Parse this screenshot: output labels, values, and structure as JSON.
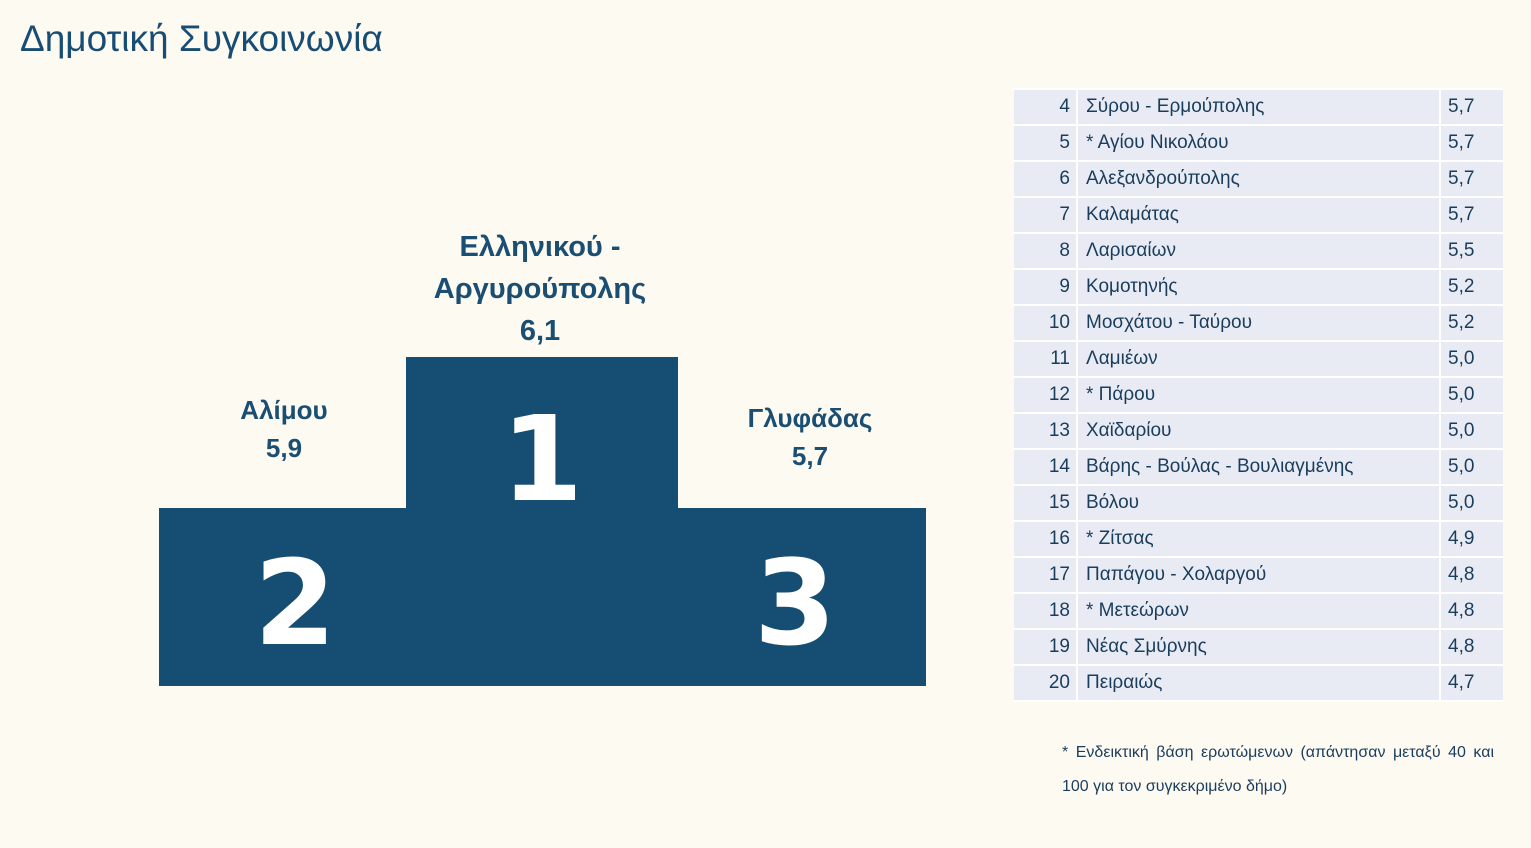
{
  "title": "Δημοτική Συγκοινωνία",
  "colors": {
    "podium": "#154e72",
    "label_text": "#1a4e72",
    "table_row": "#e8ebf3",
    "background": "#fdfaf2"
  },
  "podium": {
    "first": {
      "rank": "1",
      "name_line1": "Ελληνικού -",
      "name_line2": "Αργυρούπολης",
      "score": "6,1"
    },
    "second": {
      "rank": "2",
      "name": "Αλίμου",
      "score": "5,9"
    },
    "third": {
      "rank": "3",
      "name": "Γλυφάδας",
      "score": "5,7"
    }
  },
  "chart_data": {
    "type": "table",
    "title": "Δημοτική Συγκοινωνία",
    "top3": [
      {
        "rank": 1,
        "municipality": "Ελληνικού - Αργυρούπολης",
        "score": 6.1
      },
      {
        "rank": 2,
        "municipality": "Αλίμου",
        "score": 5.9
      },
      {
        "rank": 3,
        "municipality": "Γλυφάδας",
        "score": 5.7
      }
    ],
    "rows": [
      {
        "rank": "4",
        "name": "Σύρου - Ερμούπολης",
        "score": "5,7"
      },
      {
        "rank": "5",
        "name": "* Αγίου Νικολάου",
        "score": "5,7"
      },
      {
        "rank": "6",
        "name": "Αλεξανδρούπολης",
        "score": "5,7"
      },
      {
        "rank": "7",
        "name": "Καλαμάτας",
        "score": "5,7"
      },
      {
        "rank": "8",
        "name": "Λαρισαίων",
        "score": "5,5"
      },
      {
        "rank": "9",
        "name": "Κομοτηνής",
        "score": "5,2"
      },
      {
        "rank": "10",
        "name": "Μοσχάτου - Ταύρου",
        "score": "5,2"
      },
      {
        "rank": "11",
        "name": "Λαμιέων",
        "score": "5,0"
      },
      {
        "rank": "12",
        "name": "* Πάρου",
        "score": "5,0"
      },
      {
        "rank": "13",
        "name": "Χαϊδαρίου",
        "score": "5,0"
      },
      {
        "rank": "14",
        "name": "Βάρης - Βούλας - Βουλιαγμένης",
        "score": "5,0"
      },
      {
        "rank": "15",
        "name": "Βόλου",
        "score": "5,0"
      },
      {
        "rank": "16",
        "name": "* Ζίτσας",
        "score": "4,9"
      },
      {
        "rank": "17",
        "name": "Παπάγου - Χολαργού",
        "score": "4,8"
      },
      {
        "rank": "18",
        "name": "* Μετεώρων",
        "score": "4,8"
      },
      {
        "rank": "19",
        "name": "Νέας Σμύρνης",
        "score": "4,8"
      },
      {
        "rank": "20",
        "name": "Πειραιώς",
        "score": "4,7"
      }
    ]
  },
  "footnote": "* Ενδεικτική βάση ερωτώμενων (απάντησαν μεταξύ 40 και 100 για τον συγκεκριμένο δήμο)"
}
